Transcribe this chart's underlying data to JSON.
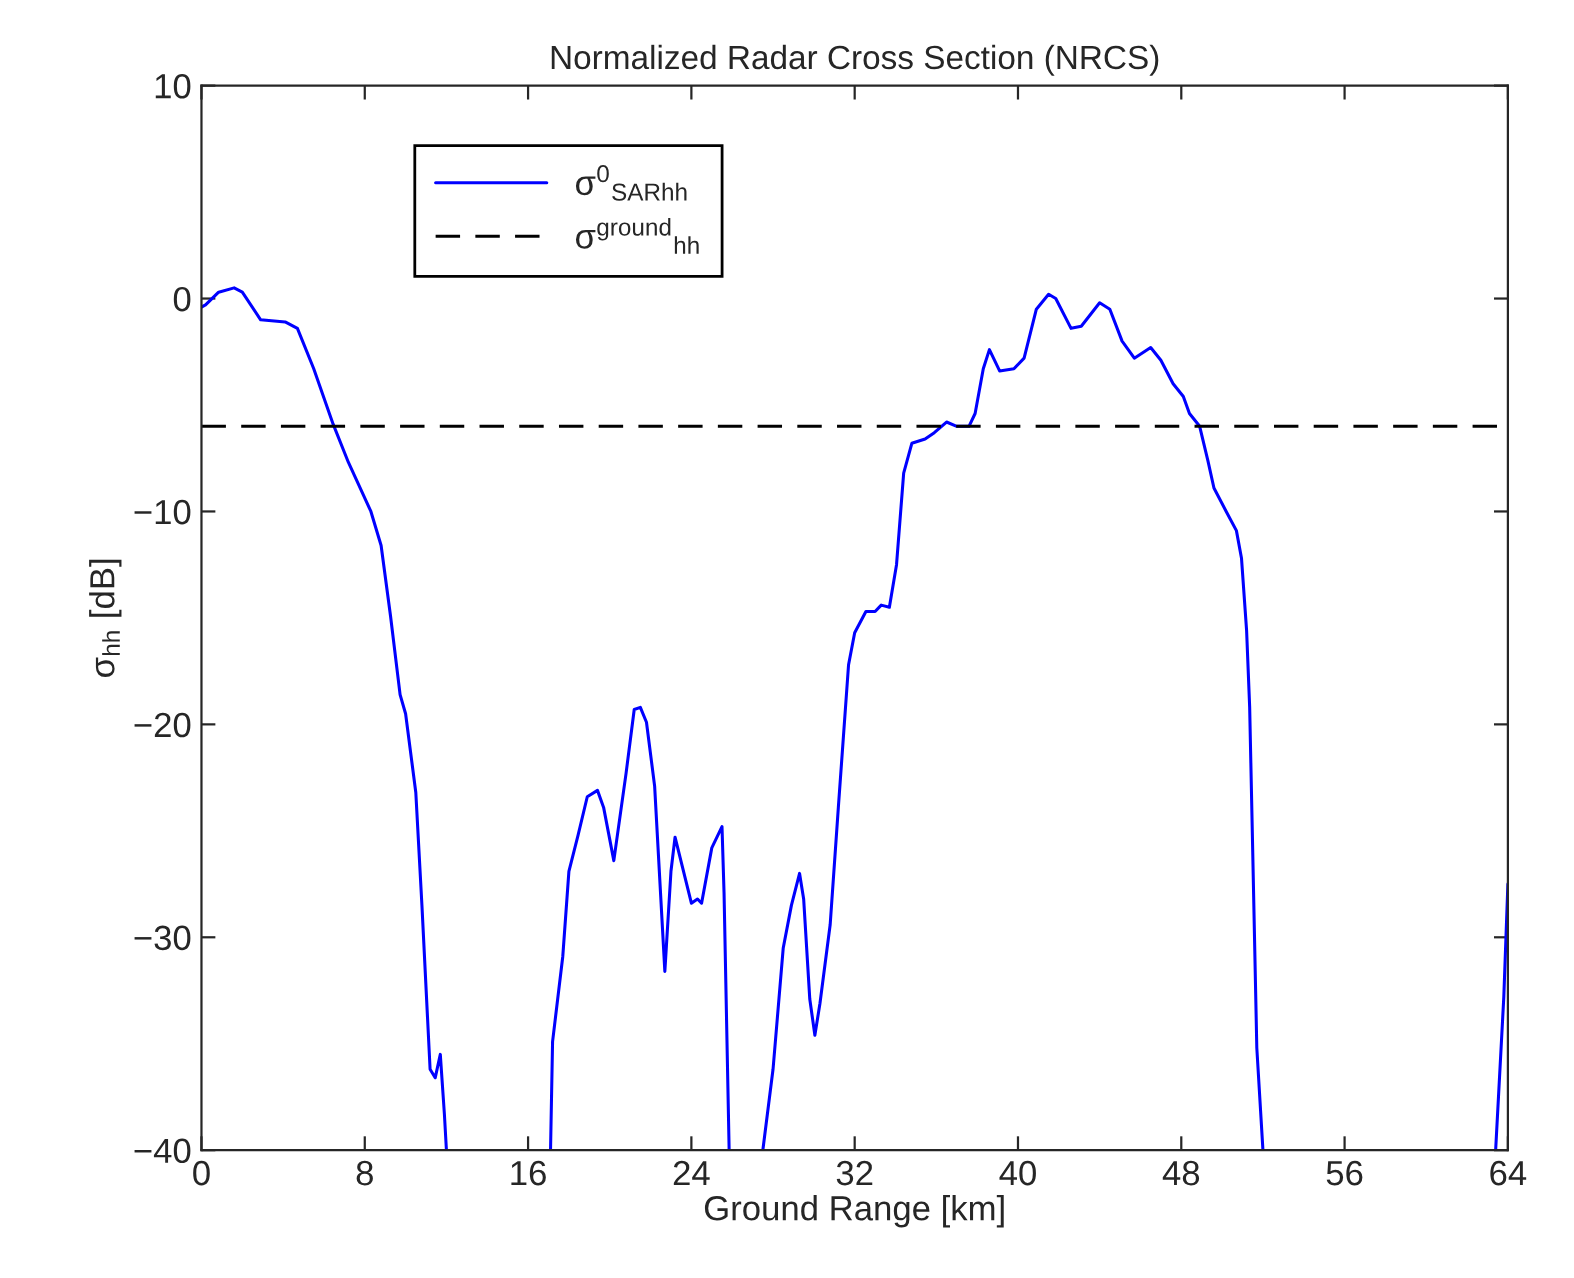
{
  "chart_data": {
    "type": "line",
    "title": "Normalized Radar Cross Section (NRCS)",
    "xlabel": "Ground Range [km]",
    "ylabel": "σ$_{hh}$ [dB]",
    "xlim": [
      0,
      64
    ],
    "ylim": [
      -40,
      10
    ],
    "xticks": [
      0,
      8,
      16,
      24,
      32,
      40,
      48,
      56,
      64
    ],
    "yticks": [
      -40,
      -30,
      -20,
      -10,
      0,
      10
    ],
    "grid": false,
    "legend": "top left",
    "line_style": "solid",
    "series": [
      {
        "name": "σ$^{0}$$_{SARhh}$",
        "color": "#0000ff",
        "x": [
          0,
          0.2,
          0.84,
          1.6,
          2.0,
          2.9,
          4.1,
          4.7,
          5.5,
          6.45,
          7.2,
          8.3,
          8.8,
          9.26,
          9.73,
          10.0,
          10.5,
          10.8,
          11.2,
          11.45,
          11.7,
          11.9,
          12.0,
          14.5,
          17.1,
          17.2,
          17.7,
          18.0,
          18.45,
          18.9,
          19.4,
          19.7,
          20.2,
          20.8,
          21.2,
          21.5,
          21.8,
          22.2,
          22.7,
          23.0,
          23.2,
          24.0,
          24.3,
          24.5,
          25.0,
          25.5,
          25.6,
          25.85,
          26.7,
          27.5,
          28.0,
          28.5,
          28.9,
          29.3,
          29.5,
          29.8,
          30.05,
          30.3,
          30.8,
          31.2,
          31.7,
          32.0,
          32.55,
          33.0,
          33.3,
          33.7,
          34.05,
          34.4,
          34.8,
          35.45,
          35.9,
          36.5,
          37.0,
          37.6,
          37.9,
          38.3,
          38.6,
          39.1,
          39.8,
          40.3,
          40.9,
          41.5,
          41.85,
          42.6,
          43.1,
          44.0,
          44.5,
          45.1,
          45.7,
          46.5,
          47.0,
          47.6,
          48.1,
          48.4,
          48.9,
          49.3,
          49.6,
          50.2,
          50.7,
          50.95,
          51.2,
          51.35,
          51.5,
          51.7,
          52.0,
          58.0,
          63.4,
          63.8,
          64.0
        ],
        "values": [
          -0.4,
          -0.3,
          0.3,
          0.5,
          0.3,
          -1.0,
          -1.1,
          -1.4,
          -3.3,
          -5.9,
          -7.7,
          -10.0,
          -11.6,
          -14.9,
          -18.6,
          -19.5,
          -23.2,
          -28.5,
          -36.2,
          -36.6,
          -35.5,
          -38.3,
          -40,
          null,
          -40,
          -34.9,
          -30.9,
          -26.9,
          -25.2,
          -23.4,
          -23.1,
          -23.9,
          -26.4,
          -22.3,
          -19.3,
          -19.2,
          -19.9,
          -22.9,
          -31.6,
          -26.9,
          -25.3,
          -28.4,
          -28.2,
          -28.4,
          -25.8,
          -24.8,
          -27.9,
          -40,
          null,
          -40,
          -36.2,
          -30.5,
          -28.5,
          -27.0,
          -28.2,
          -32.9,
          -34.6,
          -33.1,
          -29.4,
          -23.9,
          -17.2,
          -15.7,
          -14.7,
          -14.7,
          -14.4,
          -14.5,
          -12.5,
          -8.2,
          -6.8,
          -6.6,
          -6.3,
          -5.8,
          -6.0,
          -6.0,
          -5.4,
          -3.3,
          -2.4,
          -3.4,
          -3.3,
          -2.8,
          -0.5,
          0.2,
          0.0,
          -1.4,
          -1.3,
          -0.2,
          -0.5,
          -2.0,
          -2.8,
          -2.3,
          -2.9,
          -4.0,
          -4.6,
          -5.4,
          -6.0,
          -7.6,
          -8.9,
          -10.0,
          -10.9,
          -12.2,
          -15.6,
          -19.2,
          -26.0,
          -35.2,
          -40,
          null,
          -40,
          -32.8,
          -27.5
        ]
      }
    ],
    "ref_lines": [
      {
        "axis": "y",
        "value": -6,
        "label": "σ$^{ground}$$_{hh}$",
        "color": "#000000",
        "line_style": "dashed"
      }
    ]
  }
}
